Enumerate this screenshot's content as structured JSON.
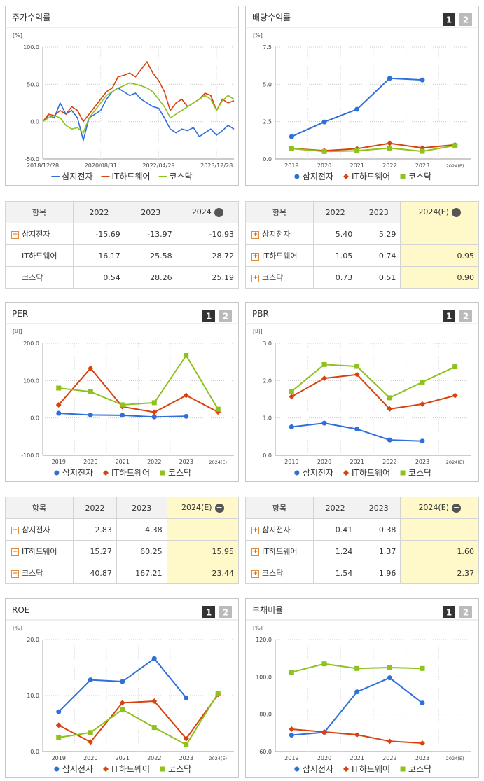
{
  "chart_data": [
    {
      "type": "line",
      "title": "주가수익률",
      "unit": "[%]",
      "categories": [
        "2018/12/28",
        null,
        null,
        null,
        null,
        null,
        null,
        null,
        null,
        null,
        "2020/08/31",
        null,
        null,
        null,
        null,
        null,
        null,
        null,
        null,
        null,
        "2022/04/29",
        null,
        null,
        null,
        null,
        null,
        null,
        null,
        null,
        null,
        "2023/12/28",
        null,
        null,
        null
      ],
      "ylim": [
        -50,
        100
      ],
      "yticks": [
        {
          "value": -50,
          "label": "-50.0"
        },
        {
          "value": 0,
          "label": "0.0"
        },
        {
          "value": 50,
          "label": "50.0"
        },
        {
          "value": 100,
          "label": "100.0"
        }
      ],
      "series": [
        {
          "name": "삼지전자",
          "color": "#2e6fd9",
          "values": [
            0,
            8,
            5,
            25,
            10,
            15,
            5,
            -25,
            5,
            10,
            15,
            30,
            40,
            45,
            40,
            35,
            38,
            30,
            25,
            20,
            18,
            5,
            -10,
            -15,
            -10,
            -12,
            -8,
            -20,
            -15,
            -10,
            -18,
            -12,
            -5,
            -10
          ]
        },
        {
          "name": "IT하드웨어",
          "color": "#d7420f",
          "values": [
            0,
            10,
            8,
            15,
            10,
            20,
            15,
            0,
            10,
            20,
            30,
            40,
            45,
            60,
            62,
            65,
            60,
            70,
            80,
            65,
            55,
            40,
            15,
            25,
            30,
            20,
            25,
            30,
            38,
            35,
            15,
            30,
            25,
            28
          ]
        },
        {
          "name": "코스닥",
          "color": "#8dc21f",
          "values": [
            0,
            5,
            8,
            5,
            -5,
            -10,
            -8,
            -15,
            5,
            15,
            25,
            35,
            40,
            45,
            48,
            52,
            50,
            48,
            45,
            40,
            30,
            20,
            5,
            10,
            15,
            20,
            25,
            30,
            35,
            30,
            15,
            28,
            35,
            30
          ]
        }
      ]
    },
    {
      "type": "line",
      "title": "배당수익률",
      "pager": [
        "1",
        "2"
      ],
      "unit": "[%]",
      "categories": [
        "2019",
        "2020",
        "2021",
        "2022",
        "2023",
        "2024(E)"
      ],
      "ylim": [
        0,
        7.5
      ],
      "yticks": [
        {
          "value": 0,
          "label": "0.0"
        },
        2.5,
        {
          "value": 5,
          "label": "5.0"
        },
        7.5
      ],
      "series": [
        {
          "name": "삼지전자",
          "color": "#2e6fd9",
          "marker": "circle",
          "values": [
            1.5,
            2.48,
            3.33,
            5.4,
            5.29,
            null
          ]
        },
        {
          "name": "IT하드웨어",
          "color": "#d7420f",
          "marker": "diamond",
          "values": [
            0.71,
            0.55,
            0.69,
            1.05,
            0.74,
            0.95
          ]
        },
        {
          "name": "코스닥",
          "color": "#8dc21f",
          "marker": "square",
          "values": [
            0.7,
            0.5,
            0.55,
            0.73,
            0.51,
            0.9
          ]
        }
      ]
    },
    {
      "type": "line",
      "title": "PER",
      "pager": [
        "1",
        "2"
      ],
      "unit": "[배]",
      "categories": [
        "2019",
        "2020",
        "2021",
        "2022",
        "2023",
        "2024(E)"
      ],
      "ylim": [
        -100,
        200
      ],
      "yticks": [
        {
          "value": -100,
          "label": "-100.0"
        },
        {
          "value": 0,
          "label": "0.0"
        },
        {
          "value": 100,
          "label": "100.0"
        },
        {
          "value": 200,
          "label": "200.0"
        }
      ],
      "series": [
        {
          "name": "삼지전자",
          "color": "#2e6fd9",
          "marker": "circle",
          "values": [
            12.5,
            8,
            7,
            2.83,
            4.38,
            null
          ]
        },
        {
          "name": "IT하드웨어",
          "color": "#d7420f",
          "marker": "diamond",
          "values": [
            35,
            133,
            30,
            15.27,
            60.25,
            15.95
          ]
        },
        {
          "name": "코스닥",
          "color": "#8dc21f",
          "marker": "square",
          "values": [
            80,
            70,
            35,
            40.87,
            167.21,
            23.44
          ]
        }
      ]
    },
    {
      "type": "line",
      "title": "PBR",
      "pager": [
        "1",
        "2"
      ],
      "unit": "[배]",
      "categories": [
        "2019",
        "2020",
        "2021",
        "2022",
        "2023",
        "2024(E)"
      ],
      "ylim": [
        0,
        3
      ],
      "yticks": [
        {
          "value": 0,
          "label": "0.0"
        },
        {
          "value": 1,
          "label": "1.0"
        },
        {
          "value": 2,
          "label": "2.0"
        },
        {
          "value": 3,
          "label": "3.0"
        }
      ],
      "series": [
        {
          "name": "삼지전자",
          "color": "#2e6fd9",
          "marker": "circle",
          "values": [
            0.76,
            0.86,
            0.7,
            0.41,
            0.38,
            null
          ]
        },
        {
          "name": "IT하드웨어",
          "color": "#d7420f",
          "marker": "diamond",
          "values": [
            1.57,
            2.06,
            2.16,
            1.24,
            1.37,
            1.6
          ]
        },
        {
          "name": "코스닥",
          "color": "#8dc21f",
          "marker": "square",
          "values": [
            1.71,
            2.43,
            2.38,
            1.54,
            1.96,
            2.37
          ]
        }
      ]
    },
    {
      "type": "line",
      "title": "ROE",
      "pager": [
        "1",
        "2"
      ],
      "unit": "[%]",
      "categories": [
        "2019",
        "2020",
        "2021",
        "2022",
        "2023",
        "2024(E)"
      ],
      "ylim": [
        0,
        20
      ],
      "yticks": [
        {
          "value": 0,
          "label": "0.0"
        },
        {
          "value": 10,
          "label": "10.0"
        },
        {
          "value": 20,
          "label": "20.0"
        }
      ],
      "series": [
        {
          "name": "삼지전자",
          "color": "#2e6fd9",
          "marker": "circle",
          "values": [
            7.1,
            12.8,
            12.5,
            16.6,
            9.6,
            null
          ]
        },
        {
          "name": "IT하드웨어",
          "color": "#d7420f",
          "marker": "diamond",
          "values": [
            4.7,
            1.7,
            8.7,
            9.0,
            2.3,
            10.2
          ]
        },
        {
          "name": "코스닥",
          "color": "#8dc21f",
          "marker": "square",
          "values": [
            2.5,
            3.4,
            7.5,
            4.3,
            1.2,
            10.4
          ]
        }
      ]
    },
    {
      "type": "line",
      "title": "부채비율",
      "pager": [
        "1",
        "2"
      ],
      "unit": "[%]",
      "categories": [
        "2019",
        "2020",
        "2021",
        "2022",
        "2023",
        "2024(E)"
      ],
      "ylim": [
        60,
        120
      ],
      "yticks": [
        {
          "value": 60,
          "label": "60.0"
        },
        {
          "value": 80,
          "label": "80.0"
        },
        {
          "value": 100,
          "label": "100.0"
        },
        {
          "value": 120,
          "label": "120.0"
        }
      ],
      "series": [
        {
          "name": "삼지전자",
          "color": "#2e6fd9",
          "marker": "circle",
          "values": [
            68.8,
            70.3,
            92,
            99.5,
            86,
            null
          ]
        },
        {
          "name": "IT하드웨어",
          "color": "#d7420f",
          "marker": "diamond",
          "values": [
            72,
            70.5,
            69,
            65.5,
            64.5,
            null
          ]
        },
        {
          "name": "코스닥",
          "color": "#8dc21f",
          "marker": "square",
          "values": [
            102.5,
            107,
            104.5,
            105,
            104.5,
            null
          ]
        }
      ]
    }
  ],
  "tables": [
    {
      "headers": [
        "항목",
        "2022",
        "2023",
        "2024"
      ],
      "highlight_last": false,
      "rows": [
        {
          "name": "삼지전자",
          "expandable": true,
          "values": [
            "-15.69",
            "-13.97",
            "-10.93"
          ]
        },
        {
          "name": "IT하드웨어",
          "expandable": false,
          "values": [
            "16.17",
            "25.58",
            "28.72"
          ]
        },
        {
          "name": "코스닥",
          "expandable": false,
          "values": [
            "0.54",
            "28.26",
            "25.19"
          ]
        }
      ]
    },
    {
      "headers": [
        "항목",
        "2022",
        "2023",
        "2024(E)"
      ],
      "highlight_last": true,
      "rows": [
        {
          "name": "삼지전자",
          "expandable": true,
          "values": [
            "5.40",
            "5.29",
            null
          ]
        },
        {
          "name": "IT하드웨어",
          "expandable": true,
          "values": [
            "1.05",
            "0.74",
            "0.95"
          ]
        },
        {
          "name": "코스닥",
          "expandable": true,
          "values": [
            "0.73",
            "0.51",
            "0.90"
          ]
        }
      ]
    },
    {
      "headers": [
        "항목",
        "2022",
        "2023",
        "2024(E)"
      ],
      "highlight_last": true,
      "rows": [
        {
          "name": "삼지전자",
          "expandable": true,
          "values": [
            "2.83",
            "4.38",
            null
          ]
        },
        {
          "name": "IT하드웨어",
          "expandable": true,
          "values": [
            "15.27",
            "60.25",
            "15.95"
          ]
        },
        {
          "name": "코스닥",
          "expandable": true,
          "values": [
            "40.87",
            "167.21",
            "23.44"
          ]
        }
      ]
    },
    {
      "headers": [
        "항목",
        "2022",
        "2023",
        "2024(E)"
      ],
      "highlight_last": true,
      "rows": [
        {
          "name": "삼지전자",
          "expandable": true,
          "values": [
            "0.41",
            "0.38",
            null
          ]
        },
        {
          "name": "IT하드웨어",
          "expandable": true,
          "values": [
            "1.24",
            "1.37",
            "1.60"
          ]
        },
        {
          "name": "코스닥",
          "expandable": true,
          "values": [
            "1.54",
            "1.96",
            "2.37"
          ]
        }
      ]
    }
  ]
}
